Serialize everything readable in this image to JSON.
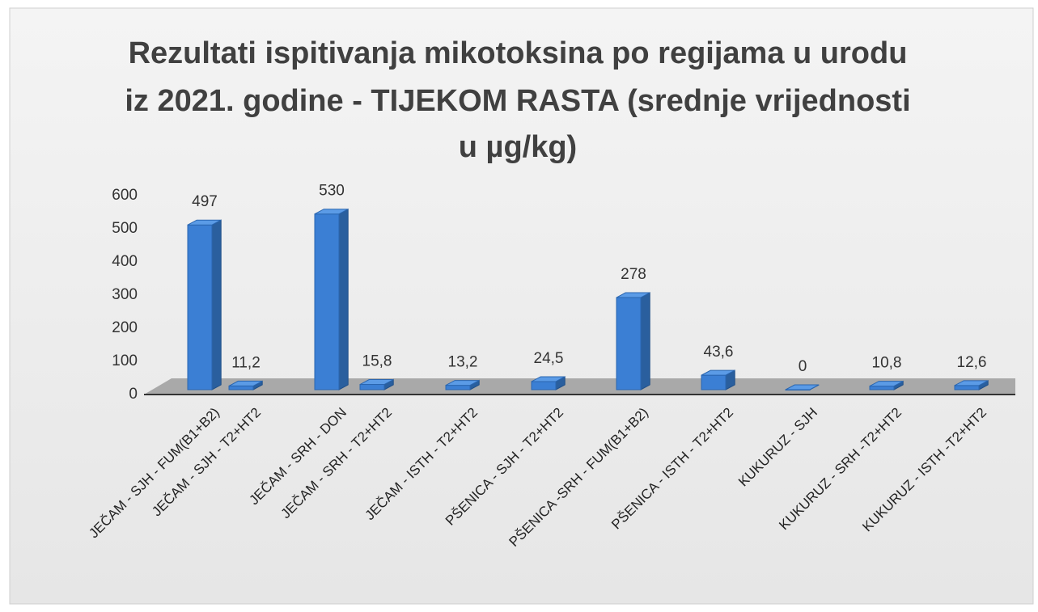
{
  "chart_data": {
    "type": "bar3d",
    "title": [
      "Rezultati ispitivanja mikotoksina po regijama u urodu",
      "iz 2021. godine - TIJEKOM RASTA (srednje vrijednosti",
      "u µg/kg)"
    ],
    "categories": [
      "JEČAM - SJH - FUM(B1+B2)",
      "JEČAM - SJH - T2+HT2",
      "JEČAM - SRH - DON",
      "JEČAM - SRH - T2+HT2",
      "JEČAM - ISTH - T2+HT2",
      "PŠENICA - SJH - T2+HT2",
      "PŠENICA -SRH - FUM(B1+B2)",
      "PŠENICA - ISTH - T2+HT2",
      "KUKURUZ - SJH",
      "KUKURUZ - SRH -T2+HT2",
      "KUKURUZ - ISTH -T2+HT2"
    ],
    "values": [
      497,
      11.2,
      530,
      15.8,
      13.2,
      24.5,
      278,
      43.6,
      0,
      10.8,
      12.6
    ],
    "value_labels": [
      "497",
      "11,2",
      "530",
      "15,8",
      "13,2",
      "24,5",
      "278",
      "43,6",
      "0",
      "10,8",
      "12,6"
    ],
    "color": "#3b7fd4",
    "ylim": [
      0,
      600
    ],
    "yticks": [
      0,
      100,
      200,
      300,
      400,
      500,
      600
    ],
    "grid": false
  }
}
